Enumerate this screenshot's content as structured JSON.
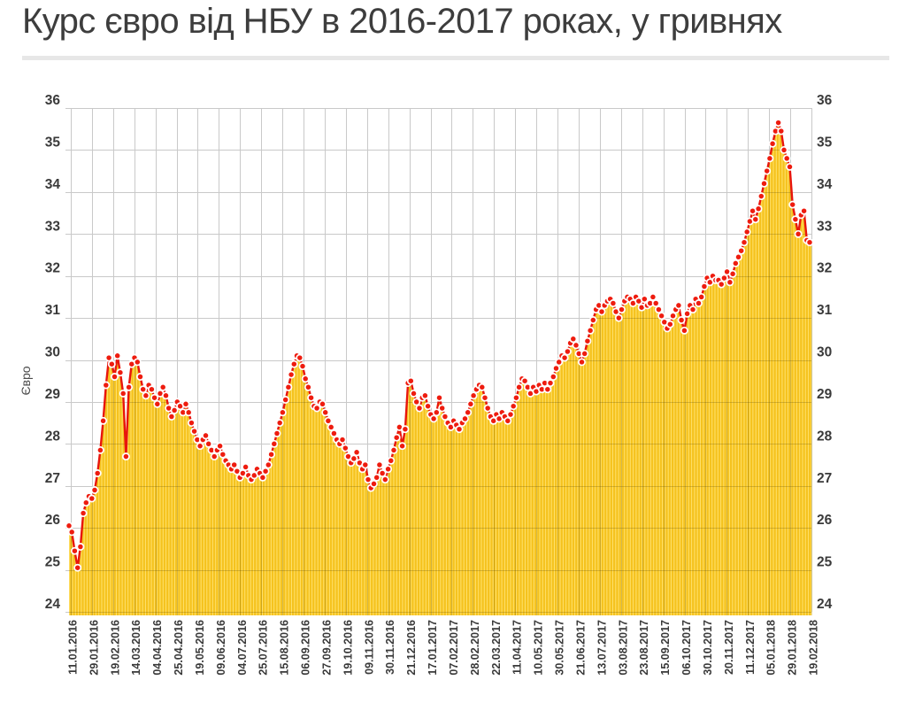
{
  "header": {
    "title": "Курс євро від НБУ в 2016-2017 роках, у гривнях"
  },
  "chart_data": {
    "type": "area",
    "title": "Курс євро від НБУ в 2016-2017 роках, у гривнях",
    "xlabel": "",
    "ylabel": "Євро",
    "ylim": [
      24,
      36
    ],
    "y_ticks": [
      24,
      25,
      26,
      27,
      28,
      29,
      30,
      31,
      32,
      33,
      34,
      35,
      36
    ],
    "y_axis_sides": "both",
    "grid": true,
    "legend": "none",
    "x_tick_labels": [
      "11.01.2016",
      "29.01.2016",
      "19.02.2016",
      "14.03.2016",
      "04.04.2016",
      "25.04.2016",
      "19.05.2016",
      "09.06.2016",
      "04.07.2016",
      "25.07.2016",
      "15.08.2016",
      "06.09.2016",
      "27.09.2016",
      "19.10.2016",
      "09.11.2016",
      "30.11.2016",
      "21.12.2016",
      "17.01.2017",
      "07.02.2017",
      "28.02.2017",
      "22.03.2017",
      "11.04.2017",
      "10.05.2017",
      "30.05.2017",
      "21.06.2017",
      "13.07.2017",
      "03.08.2017",
      "23.08.2017",
      "15.09.2017",
      "06.10.2017",
      "30.10.2017",
      "20.11.2017",
      "11.12.2017",
      "05.01.2018",
      "29.01.2018",
      "19.02.2018"
    ],
    "values": [
      26.05,
      25.9,
      25.45,
      25.05,
      25.55,
      26.35,
      26.6,
      26.75,
      26.7,
      26.9,
      27.3,
      27.85,
      28.55,
      29.4,
      30.05,
      29.9,
      29.6,
      30.1,
      29.7,
      29.2,
      27.7,
      29.35,
      29.9,
      30.05,
      29.95,
      29.6,
      29.3,
      29.15,
      29.4,
      29.3,
      29.1,
      28.95,
      29.2,
      29.35,
      29.15,
      28.85,
      28.65,
      28.8,
      29.0,
      28.9,
      28.75,
      28.95,
      28.75,
      28.5,
      28.3,
      28.1,
      27.95,
      28.1,
      28.2,
      28.0,
      27.85,
      27.7,
      27.85,
      27.95,
      27.75,
      27.6,
      27.5,
      27.4,
      27.5,
      27.35,
      27.2,
      27.3,
      27.45,
      27.25,
      27.15,
      27.25,
      27.4,
      27.3,
      27.2,
      27.35,
      27.5,
      27.75,
      28.0,
      28.25,
      28.5,
      28.75,
      29.05,
      29.35,
      29.65,
      29.9,
      30.1,
      30.05,
      29.85,
      29.55,
      29.35,
      29.1,
      28.9,
      28.85,
      29.0,
      28.95,
      28.75,
      28.55,
      28.4,
      28.25,
      28.1,
      28.0,
      28.1,
      27.9,
      27.7,
      27.55,
      27.65,
      27.8,
      27.55,
      27.4,
      27.5,
      27.15,
      26.95,
      27.05,
      27.2,
      27.5,
      27.3,
      27.15,
      27.4,
      27.6,
      27.85,
      28.15,
      28.4,
      27.95,
      28.35,
      29.45,
      29.5,
      29.2,
      29.0,
      28.85,
      29.1,
      29.15,
      28.9,
      28.7,
      28.6,
      28.75,
      29.1,
      28.85,
      28.65,
      28.5,
      28.4,
      28.55,
      28.45,
      28.35,
      28.5,
      28.6,
      28.75,
      28.95,
      29.15,
      29.3,
      29.4,
      29.35,
      29.1,
      28.85,
      28.65,
      28.55,
      28.7,
      28.6,
      28.75,
      28.65,
      28.55,
      28.7,
      28.9,
      29.1,
      29.35,
      29.55,
      29.5,
      29.35,
      29.2,
      29.35,
      29.25,
      29.4,
      29.3,
      29.45,
      29.3,
      29.45,
      29.6,
      29.8,
      29.95,
      30.1,
      30.05,
      30.2,
      30.4,
      30.5,
      30.35,
      30.15,
      29.95,
      30.15,
      30.45,
      30.7,
      30.95,
      31.2,
      31.3,
      31.15,
      31.3,
      31.4,
      31.45,
      31.35,
      31.15,
      31.0,
      31.2,
      31.4,
      31.5,
      31.45,
      31.35,
      31.5,
      31.4,
      31.25,
      31.45,
      31.3,
      31.35,
      31.5,
      31.35,
      31.2,
      31.05,
      30.9,
      30.75,
      30.85,
      31.05,
      31.2,
      31.3,
      30.95,
      30.7,
      31.1,
      31.3,
      31.2,
      31.45,
      31.35,
      31.5,
      31.75,
      31.95,
      31.85,
      32.0,
      31.9,
      31.9,
      31.8,
      31.95,
      32.1,
      31.85,
      32.05,
      32.3,
      32.45,
      32.6,
      32.8,
      33.05,
      33.3,
      33.55,
      33.35,
      33.6,
      33.9,
      34.2,
      34.5,
      34.8,
      35.15,
      35.45,
      35.65,
      35.45,
      35.0,
      34.8,
      34.6,
      33.7,
      33.35,
      33.0,
      33.45,
      33.55,
      32.85,
      32.8
    ],
    "colors": {
      "point": "#ee1c0f",
      "line": "#e8150c",
      "point_ring": "#ffffff",
      "area_stripe_dark": "#f5c21d",
      "area_stripe_light": "#ffe16c",
      "grid": "#c9c9c9",
      "tick_text": "#3a3a3a",
      "axis_title_text": "#4c4c4c",
      "title_text": "#3d3d3d",
      "divider": "#e7e7e7"
    }
  }
}
